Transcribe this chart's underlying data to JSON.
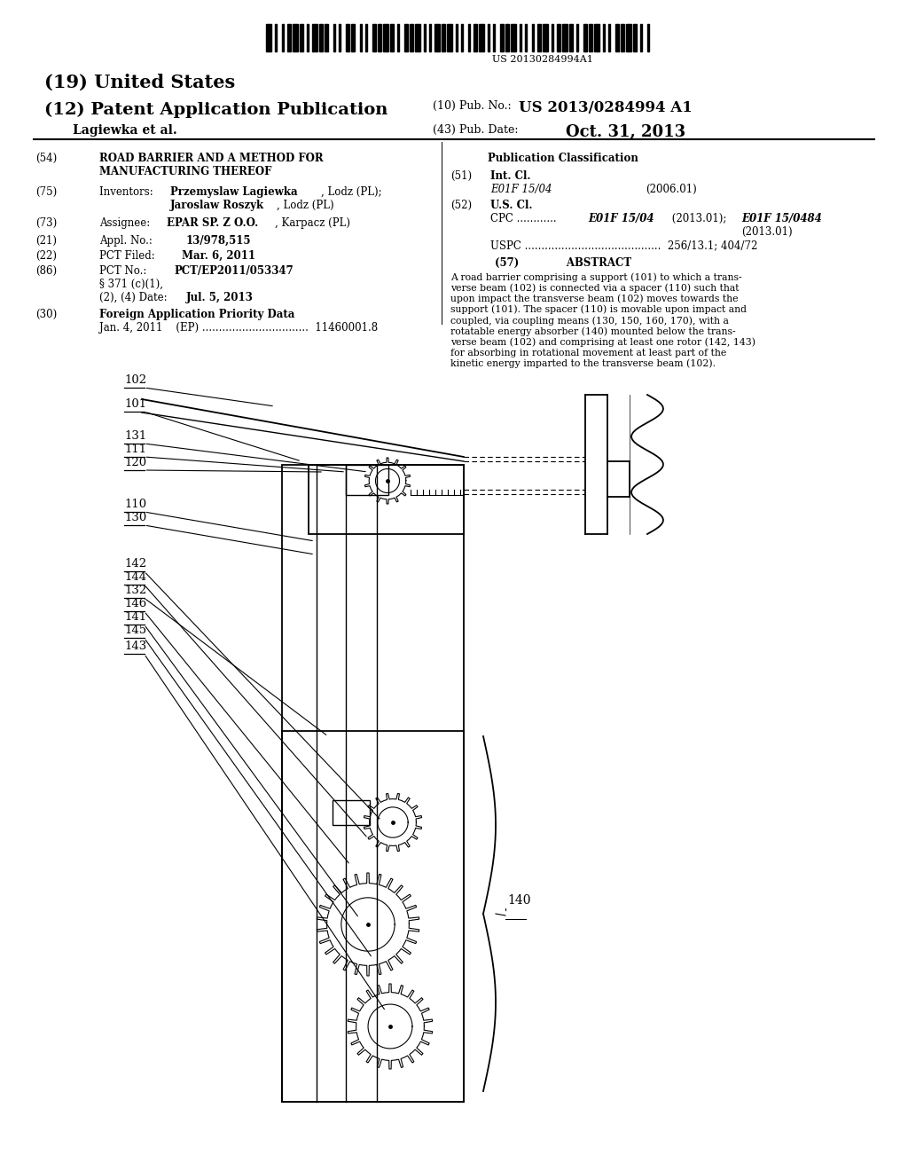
{
  "bg_color": "#ffffff",
  "barcode_text": "US 20130284994A1",
  "title_19": "(19) United States",
  "title_12": "(12) Patent Application Publication",
  "pub_no_label": "(10) Pub. No.:",
  "pub_no": "US 2013/0284994 A1",
  "author": "Lagiewka et al.",
  "pub_date_label": "(43) Pub. Date:",
  "pub_date": "Oct. 31, 2013",
  "abstract": "A road barrier comprising a support (101) to which a trans-\nverse beam (102) is connected via a spacer (110) such that\nupon impact the transverse beam (102) moves towards the\nsupport (101). The spacer (110) is movable upon impact and\ncoupled, via coupling means (130, 150, 160, 170), with a\nrotatable energy absorber (140) mounted below the trans-\nverse beam (102) and comprising at least one rotor (142, 143)\nfor absorbing in rotational movement at least part of the\nkinetic energy imparted to the transverse beam (102).",
  "label_info": [
    [
      "102",
      140,
      885,
      310,
      862
    ],
    [
      "101",
      140,
      858,
      340,
      800
    ],
    [
      "131",
      140,
      822,
      415,
      788
    ],
    [
      "111",
      140,
      807,
      390,
      788
    ],
    [
      "120",
      140,
      792,
      365,
      788
    ],
    [
      "110",
      140,
      745,
      355,
      710
    ],
    [
      "130",
      140,
      730,
      355,
      695
    ],
    [
      "142",
      140,
      678,
      430,
      395
    ],
    [
      "144",
      140,
      663,
      415,
      375
    ],
    [
      "132",
      140,
      648,
      370,
      490
    ],
    [
      "146",
      140,
      633,
      395,
      345
    ],
    [
      "141",
      140,
      618,
      405,
      285
    ],
    [
      "145",
      140,
      603,
      420,
      240
    ],
    [
      "143",
      140,
      585,
      435,
      180
    ]
  ]
}
